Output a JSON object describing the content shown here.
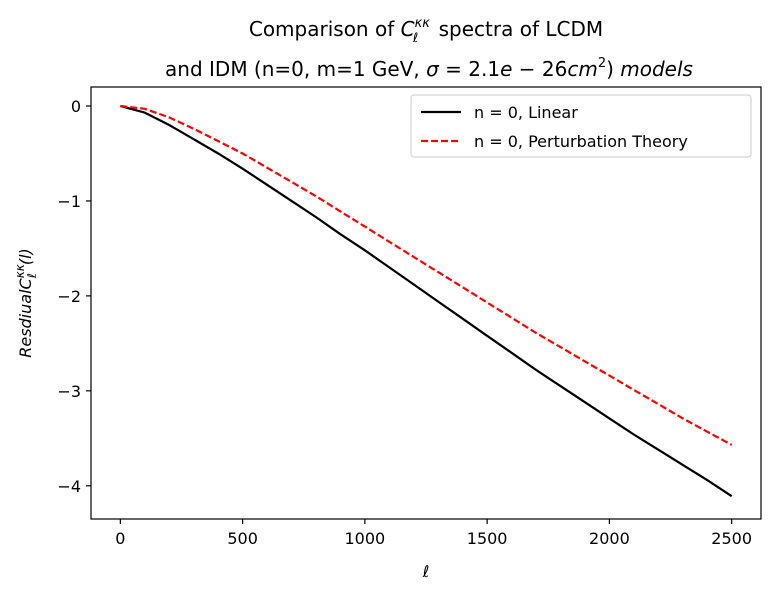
{
  "chart_data": {
    "type": "line",
    "title_line1": "Comparison of C_ℓ^κκ spectra of LCDM",
    "title_line2": "and IDM (n=0, m=1 GeV, σ = 2.1e − 26cm²) models",
    "xlabel": "ℓ",
    "ylabel": "ResdiualC_ℓ^κκ(l)",
    "xlim": [
      -120,
      2620
    ],
    "ylim": [
      -4.35,
      0.2
    ],
    "xticks": [
      0,
      500,
      1000,
      1500,
      2000,
      2500
    ],
    "xtick_labels": [
      "0",
      "500",
      "1000",
      "1500",
      "2000",
      "2500"
    ],
    "yticks": [
      0,
      -1,
      -2,
      -3,
      -4
    ],
    "ytick_labels": [
      "0",
      "−1",
      "−2",
      "−3",
      "−4"
    ],
    "grid": false,
    "legend_position": "top-right",
    "series": [
      {
        "name": "n = 0, Linear",
        "color": "#000000",
        "style": "solid",
        "x": [
          0,
          100,
          200,
          300,
          400,
          500,
          600,
          700,
          800,
          900,
          1000,
          1100,
          1200,
          1300,
          1400,
          1500,
          1600,
          1700,
          1800,
          1900,
          2000,
          2100,
          2200,
          2300,
          2400,
          2500
        ],
        "y": [
          0.0,
          -0.07,
          -0.2,
          -0.35,
          -0.5,
          -0.66,
          -0.83,
          -1.0,
          -1.17,
          -1.35,
          -1.52,
          -1.7,
          -1.88,
          -2.06,
          -2.24,
          -2.42,
          -2.6,
          -2.78,
          -2.95,
          -3.12,
          -3.29,
          -3.46,
          -3.62,
          -3.78,
          -3.94,
          -4.11
        ]
      },
      {
        "name": "n = 0, Perturbation Theory",
        "color": "#ff0000",
        "style": "dashed",
        "x": [
          0,
          100,
          200,
          300,
          400,
          500,
          600,
          700,
          800,
          900,
          1000,
          1100,
          1200,
          1300,
          1400,
          1500,
          1600,
          1700,
          1800,
          1900,
          2000,
          2100,
          2200,
          2300,
          2400,
          2500
        ],
        "y": [
          0.0,
          -0.03,
          -0.12,
          -0.24,
          -0.37,
          -0.5,
          -0.65,
          -0.8,
          -0.95,
          -1.11,
          -1.27,
          -1.43,
          -1.59,
          -1.75,
          -1.91,
          -2.07,
          -2.23,
          -2.39,
          -2.54,
          -2.69,
          -2.84,
          -2.99,
          -3.14,
          -3.29,
          -3.43,
          -3.57
        ]
      }
    ]
  }
}
